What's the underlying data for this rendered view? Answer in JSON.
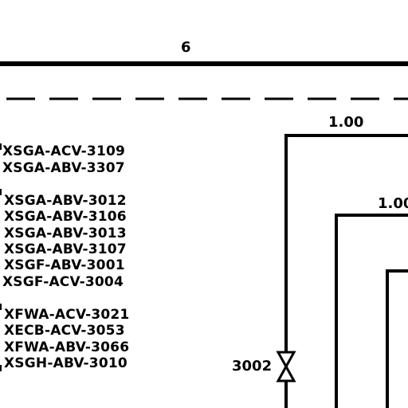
{
  "zone_label": "6",
  "line_labels": {
    "outer": "1.00",
    "inner": "1.00"
  },
  "groups": [
    [
      "XSGA-ACV-3109",
      "XSGA-ABV-3307"
    ],
    [
      "XSGA-ABV-3012",
      "XSGA-ABV-3106",
      "XSGA-ABV-3013",
      "XSGA-ABV-3107",
      "XSGF-ABV-3001",
      "XSGF-ACV-3004"
    ],
    [
      "XFWA-ACV-3021",
      "XECB-ACV-3053",
      "XFWA-ABV-3066",
      "XSGH-ABV-3010"
    ]
  ],
  "valve_tag": "3002"
}
